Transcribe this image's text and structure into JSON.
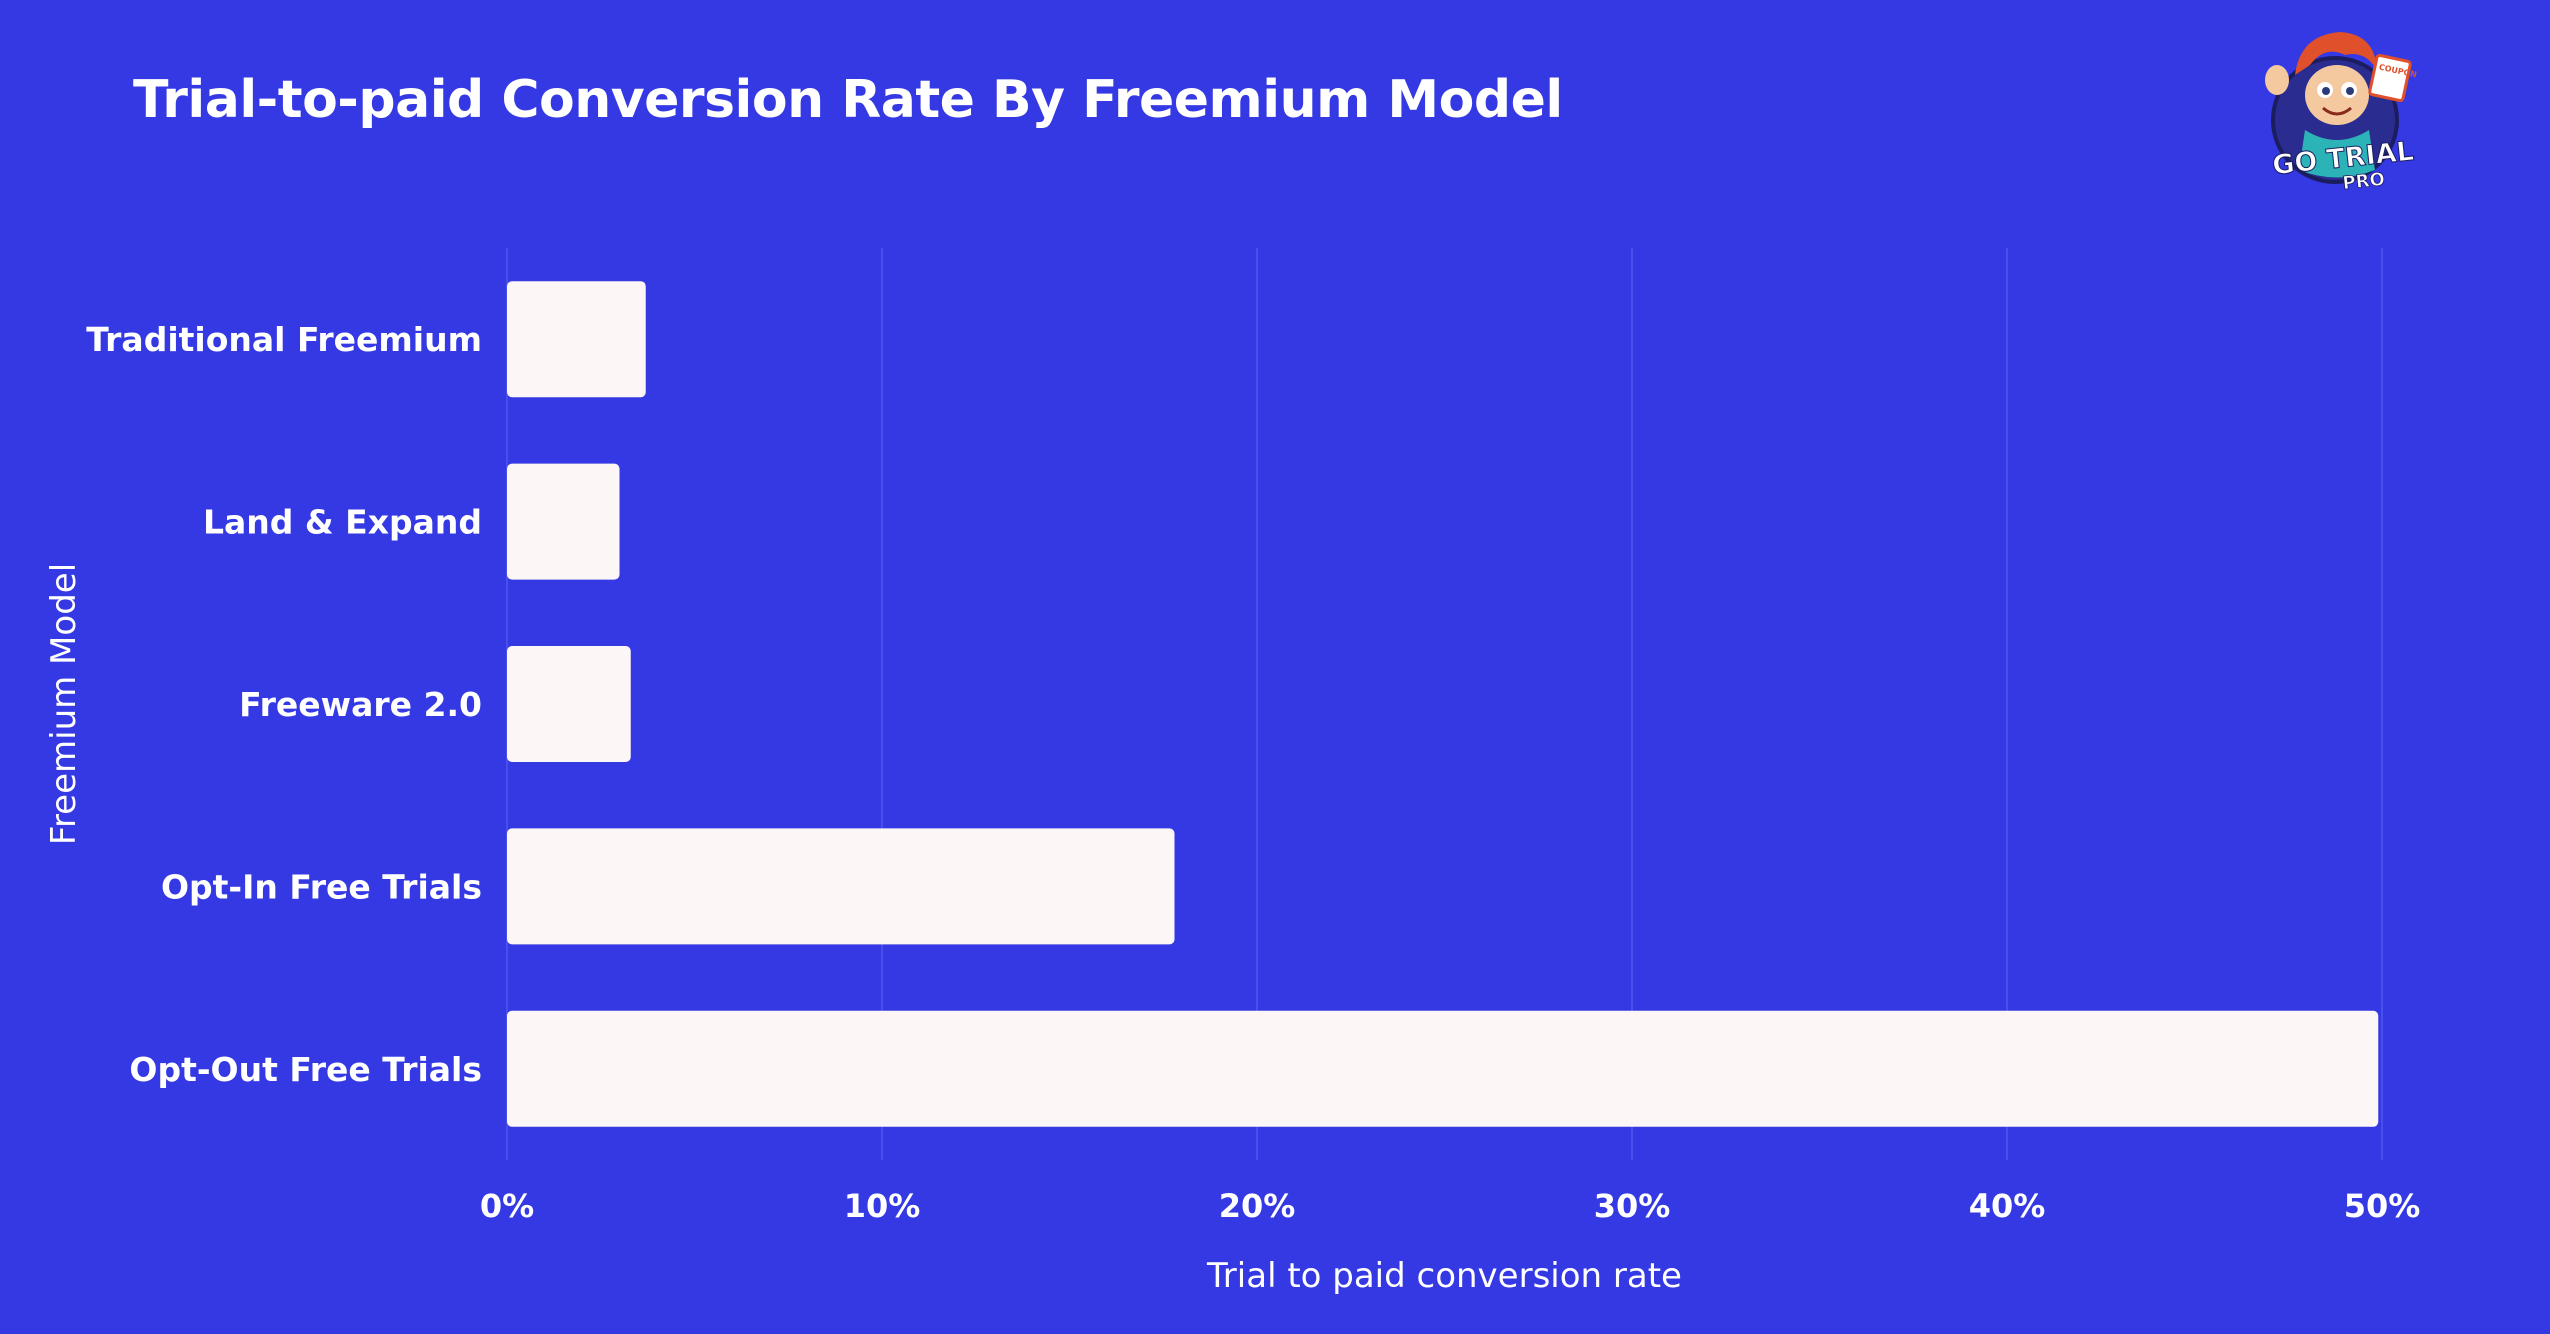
{
  "logo": {
    "text_line1": "GO TRIAL",
    "text_line2": "PRO",
    "badge_text": "COUPON"
  },
  "colors": {
    "background": "#3439E4",
    "bar_fill": "#FDF6F6",
    "grid": "#4A4FEC",
    "text": "#FFFFFF"
  },
  "chart_data": {
    "type": "bar",
    "orientation": "horizontal",
    "title": "Trial-to-paid Conversion Rate By Freemium Model",
    "xlabel": "Trial to paid conversion rate",
    "ylabel": "Freemium Model",
    "categories": [
      "Traditional Freemium",
      "Land & Expand",
      "Freeware 2.0",
      "Opt-In Free Trials",
      "Opt-Out Free Trials"
    ],
    "values": [
      3.7,
      3.0,
      3.3,
      17.8,
      49.9
    ],
    "xlim": [
      0,
      50
    ],
    "xticks": [
      0,
      10,
      20,
      30,
      40,
      50
    ],
    "xtick_labels": [
      "0%",
      "10%",
      "20%",
      "30%",
      "40%",
      "50%"
    ],
    "grid": "vertical",
    "legend": "none"
  }
}
